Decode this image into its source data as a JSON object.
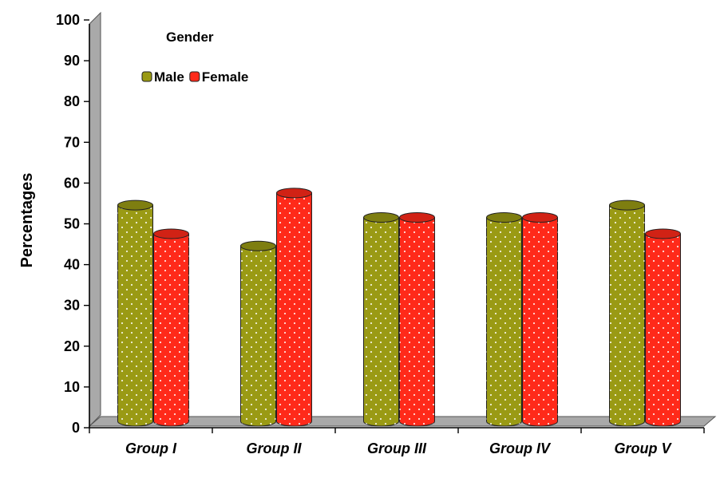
{
  "chart_data": {
    "type": "bar",
    "title": "",
    "xlabel": "",
    "ylabel": "Percentages",
    "ylim": [
      0,
      100
    ],
    "yticks": [
      0,
      10,
      20,
      30,
      40,
      50,
      60,
      70,
      80,
      90,
      100
    ],
    "categories": [
      "Group I",
      "Group II",
      "Group III",
      "Group IV",
      "Group V"
    ],
    "legend": {
      "title": "Gender",
      "placement": "top-left"
    },
    "series": [
      {
        "name": "Male",
        "color": "#9a9a14",
        "values": [
          53,
          43,
          50,
          50,
          53
        ]
      },
      {
        "name": "Female",
        "color": "#ff2a1a",
        "values": [
          46,
          56,
          50,
          50,
          46
        ]
      }
    ]
  }
}
